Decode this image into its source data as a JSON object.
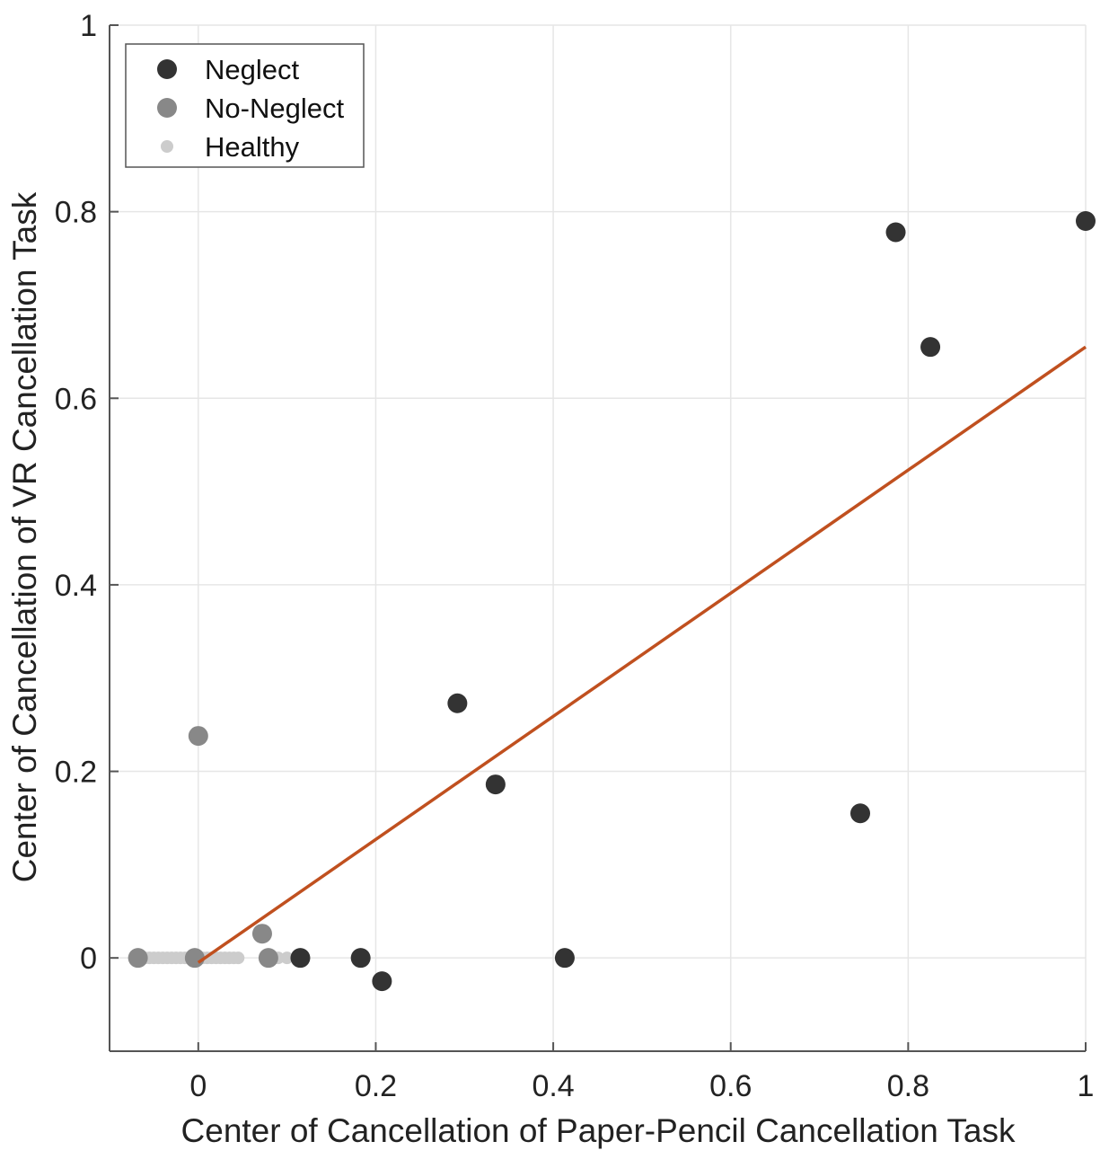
{
  "chart_data": {
    "type": "scatter",
    "xlabel": "Center of Cancellation of Paper-Pencil Cancellation Task",
    "ylabel": "Center of Cancellation of VR Cancellation Task",
    "xlim": [
      -0.1,
      1.0
    ],
    "ylim": [
      -0.1,
      1.0
    ],
    "grid": true,
    "legend_position": "top-left",
    "x_ticks": [
      0,
      0.2,
      0.4,
      0.6,
      0.8,
      1
    ],
    "x_tick_labels": [
      "0",
      "0.2",
      "0.4",
      "0.6",
      "0.8",
      "1"
    ],
    "y_ticks": [
      0,
      0.2,
      0.4,
      0.6,
      0.8,
      1
    ],
    "y_tick_labels": [
      "0",
      "0.2",
      "0.4",
      "0.6",
      "0.8",
      "1"
    ],
    "series": [
      {
        "name": "Neglect",
        "color": "#333333",
        "marker": "large",
        "points": [
          [
            0.115,
            0.0
          ],
          [
            0.183,
            0.0
          ],
          [
            0.207,
            -0.025
          ],
          [
            0.292,
            0.273
          ],
          [
            0.335,
            0.186
          ],
          [
            0.413,
            0.0
          ],
          [
            0.746,
            0.155
          ],
          [
            0.786,
            0.778
          ],
          [
            0.825,
            0.655
          ],
          [
            1.0,
            0.79
          ]
        ]
      },
      {
        "name": "No-Neglect",
        "color": "#888888",
        "marker": "large",
        "points": [
          [
            -0.068,
            0.0
          ],
          [
            -0.004,
            0.0
          ],
          [
            0.0,
            0.238
          ],
          [
            0.072,
            0.026
          ],
          [
            0.079,
            0.0
          ]
        ]
      },
      {
        "name": "Healthy",
        "color": "#cccccc",
        "marker": "small",
        "points": [
          [
            -0.06,
            0.0
          ],
          [
            -0.055,
            0.0
          ],
          [
            -0.05,
            0.0
          ],
          [
            -0.045,
            0.0
          ],
          [
            -0.04,
            0.0
          ],
          [
            -0.035,
            0.0
          ],
          [
            -0.03,
            0.0
          ],
          [
            -0.025,
            0.0
          ],
          [
            -0.02,
            0.0
          ],
          [
            -0.015,
            0.0
          ],
          [
            -0.01,
            0.0
          ],
          [
            -0.005,
            0.0
          ],
          [
            0.0,
            0.0
          ],
          [
            0.005,
            0.0
          ],
          [
            0.01,
            0.0
          ],
          [
            0.015,
            0.0
          ],
          [
            0.02,
            0.0
          ],
          [
            0.025,
            0.0
          ],
          [
            0.03,
            0.0
          ],
          [
            0.035,
            0.0
          ],
          [
            0.04,
            0.0
          ],
          [
            0.045,
            0.0
          ],
          [
            0.09,
            0.0
          ],
          [
            0.1,
            0.0
          ]
        ]
      }
    ],
    "fit_line": {
      "color": "#c0501f",
      "x": [
        0.0,
        1.0
      ],
      "y": [
        -0.005,
        0.655
      ]
    }
  }
}
